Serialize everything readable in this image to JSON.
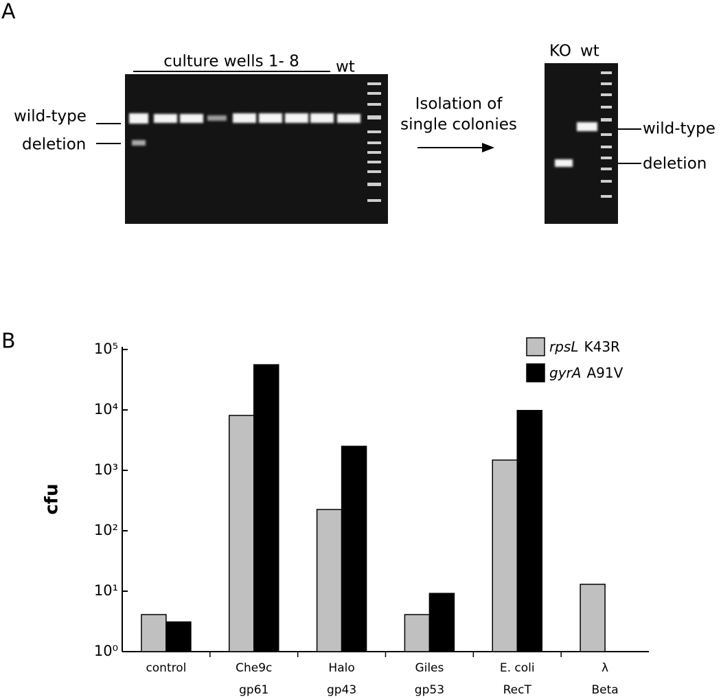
{
  "panel_a": {
    "label": "A",
    "gel_1": {
      "header": "culture wells 1- 8",
      "wt_label": "wt",
      "band_labels": [
        "wild-type",
        "deletion"
      ]
    },
    "arrow_text": [
      "Isolation of",
      "single colonies"
    ],
    "gel_2": {
      "lane_labels": [
        "KO",
        "wt"
      ],
      "band_labels": [
        "wild-type",
        "deletion"
      ]
    }
  },
  "chart_data": {
    "type": "bar",
    "panel_label": "B",
    "ylabel": "cfu",
    "log_y": true,
    "ylim": [
      1,
      100000
    ],
    "yticks": [
      {
        "value": 1,
        "label": "10⁰"
      },
      {
        "value": 10,
        "label": "10¹"
      },
      {
        "value": 100,
        "label": "10²"
      },
      {
        "value": 1000,
        "label": "10³"
      },
      {
        "value": 10000,
        "label": "10⁴"
      },
      {
        "value": 100000,
        "label": "10⁵"
      }
    ],
    "categories": [
      [
        "control"
      ],
      [
        "Che9c",
        "gp61"
      ],
      [
        "Halo",
        "gp43"
      ],
      [
        "Giles",
        "gp53"
      ],
      [
        "E. coli",
        "RecT"
      ],
      [
        "λ",
        "Beta"
      ]
    ],
    "series": [
      {
        "name": [
          "rpsL",
          "K43R"
        ],
        "color": "#c0c0c0",
        "values": [
          4.1,
          8100,
          225,
          4.1,
          1480,
          13
        ]
      },
      {
        "name": [
          "gyrA",
          "A91V"
        ],
        "color": "#000000",
        "values": [
          3.1,
          56000,
          2500,
          9.2,
          9800,
          null
        ]
      }
    ],
    "legend": "upper right"
  }
}
